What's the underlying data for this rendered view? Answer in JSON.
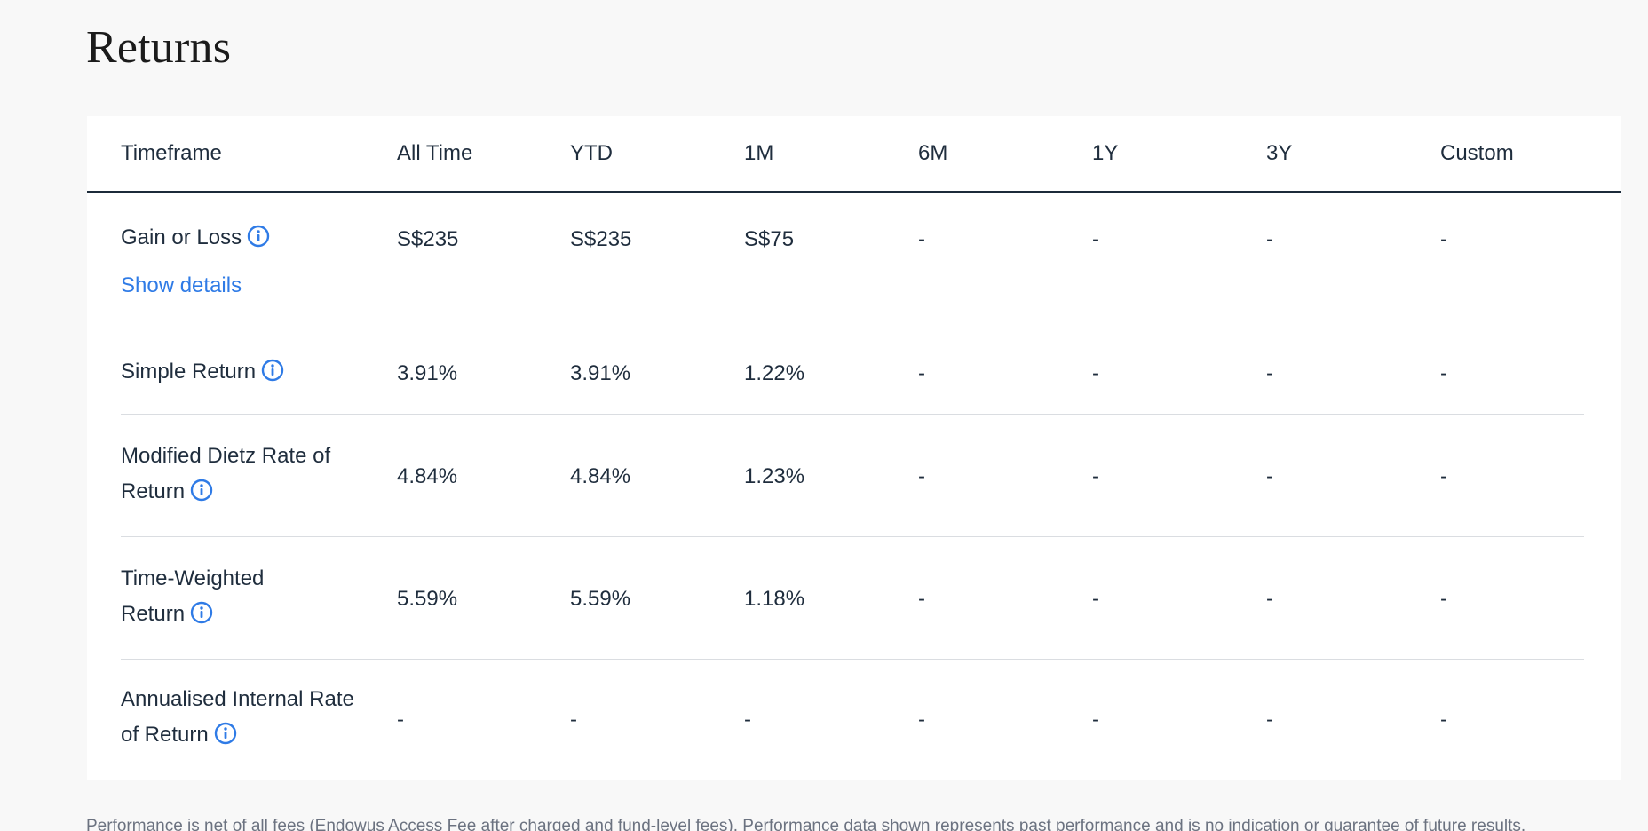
{
  "page": {
    "title": "Returns"
  },
  "table": {
    "headers": [
      "Timeframe",
      "All Time",
      "YTD",
      "1M",
      "6M",
      "1Y",
      "3Y",
      "Custom"
    ],
    "rows": [
      {
        "label": "Gain or Loss",
        "link": "Show details",
        "values": [
          "S$235",
          "S$235",
          "S$75",
          "-",
          "-",
          "-",
          "-"
        ]
      },
      {
        "label": "Simple Return",
        "values": [
          "3.91%",
          "3.91%",
          "1.22%",
          "-",
          "-",
          "-",
          "-"
        ]
      },
      {
        "label_lines": [
          "Modified Dietz Rate of",
          "Return"
        ],
        "values": [
          "4.84%",
          "4.84%",
          "1.23%",
          "-",
          "-",
          "-",
          "-"
        ]
      },
      {
        "label_lines": [
          "Time-Weighted",
          "Return"
        ],
        "values": [
          "5.59%",
          "5.59%",
          "1.18%",
          "-",
          "-",
          "-",
          "-"
        ]
      },
      {
        "label_lines": [
          "Annualised Internal Rate",
          "of Return"
        ],
        "values": [
          "-",
          "-",
          "-",
          "-",
          "-",
          "-",
          "-"
        ]
      }
    ]
  },
  "footnote": "Performance is net of all fees (Endowus Access Fee after charged and fund-level fees). Performance data shown represents past performance and is no indication or guarantee of future results.",
  "colors": {
    "link": "#2f7be6",
    "info_icon": "#2f7be6",
    "header_rule": "#1c2b3a",
    "row_divider": "#dadde1"
  },
  "icons": {
    "info": "info-circle-icon"
  }
}
